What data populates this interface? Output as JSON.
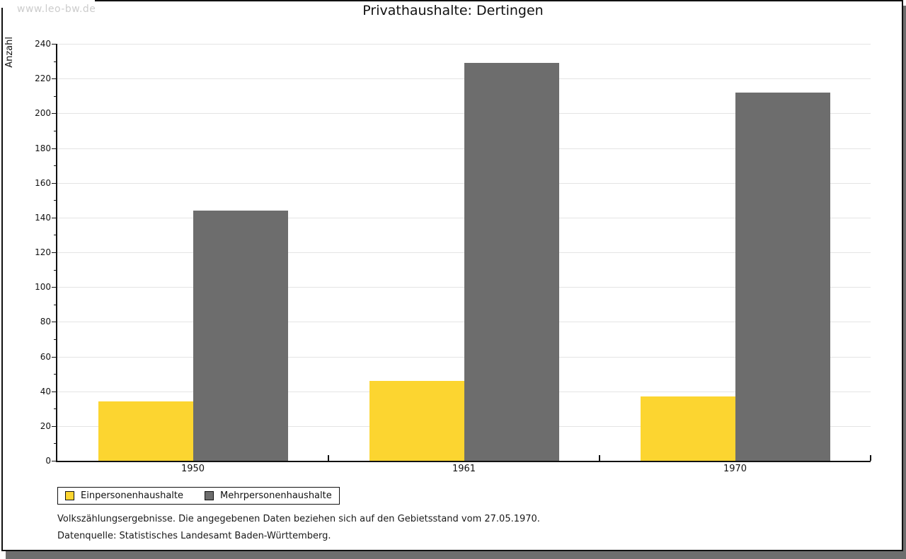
{
  "watermark": "www.leo-bw.de",
  "chart_data": {
    "type": "bar",
    "title": "Privathaushalte: Dertingen",
    "categories": [
      "1950",
      "1961",
      "1970"
    ],
    "series": [
      {
        "name": "Einpersonenhaushalte",
        "color": "#fcd530",
        "values": [
          34,
          46,
          37
        ]
      },
      {
        "name": "Mehrpersonenhaushalte",
        "color": "#6d6d6d",
        "values": [
          144,
          229,
          212
        ]
      }
    ],
    "xlabel": "",
    "ylabel": "Anzahl",
    "ylim": [
      0,
      240
    ],
    "ytick_step": 20,
    "ytick_minor_step": 10,
    "grid": true,
    "legend_position": "bottom-left"
  },
  "footnotes": [
    "Volkszählungsergebnisse. Die angegebenen Daten beziehen sich auf den Gebietsstand vom 27.05.1970.",
    "Datenquelle: Statistisches Landesamt Baden-Württemberg."
  ]
}
